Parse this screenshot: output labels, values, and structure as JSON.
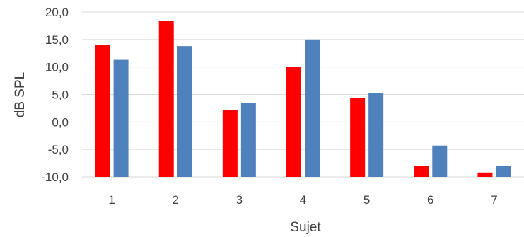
{
  "chart_data": {
    "type": "bar",
    "title": "",
    "xlabel": "Sujet",
    "ylabel": "dB SPL",
    "categories": [
      "1",
      "2",
      "3",
      "4",
      "5",
      "6",
      "7"
    ],
    "ylim": [
      -10,
      20
    ],
    "yticks": [
      20,
      15,
      10,
      5,
      0,
      -5,
      -10
    ],
    "ytick_labels": [
      "20,0",
      "15,0",
      "10,0",
      "5,0",
      "0,0",
      "-5,0",
      "-10,0"
    ],
    "grid": true,
    "legend": "none",
    "bar_baseline": -10,
    "series": [
      {
        "color": "#ff0000",
        "values": [
          14.0,
          18.4,
          2.2,
          10.0,
          4.3,
          -8.0,
          -9.2
        ]
      },
      {
        "color": "#4f81bd",
        "values": [
          11.3,
          13.8,
          3.4,
          15.0,
          5.2,
          -4.3,
          -8.0
        ]
      }
    ]
  }
}
